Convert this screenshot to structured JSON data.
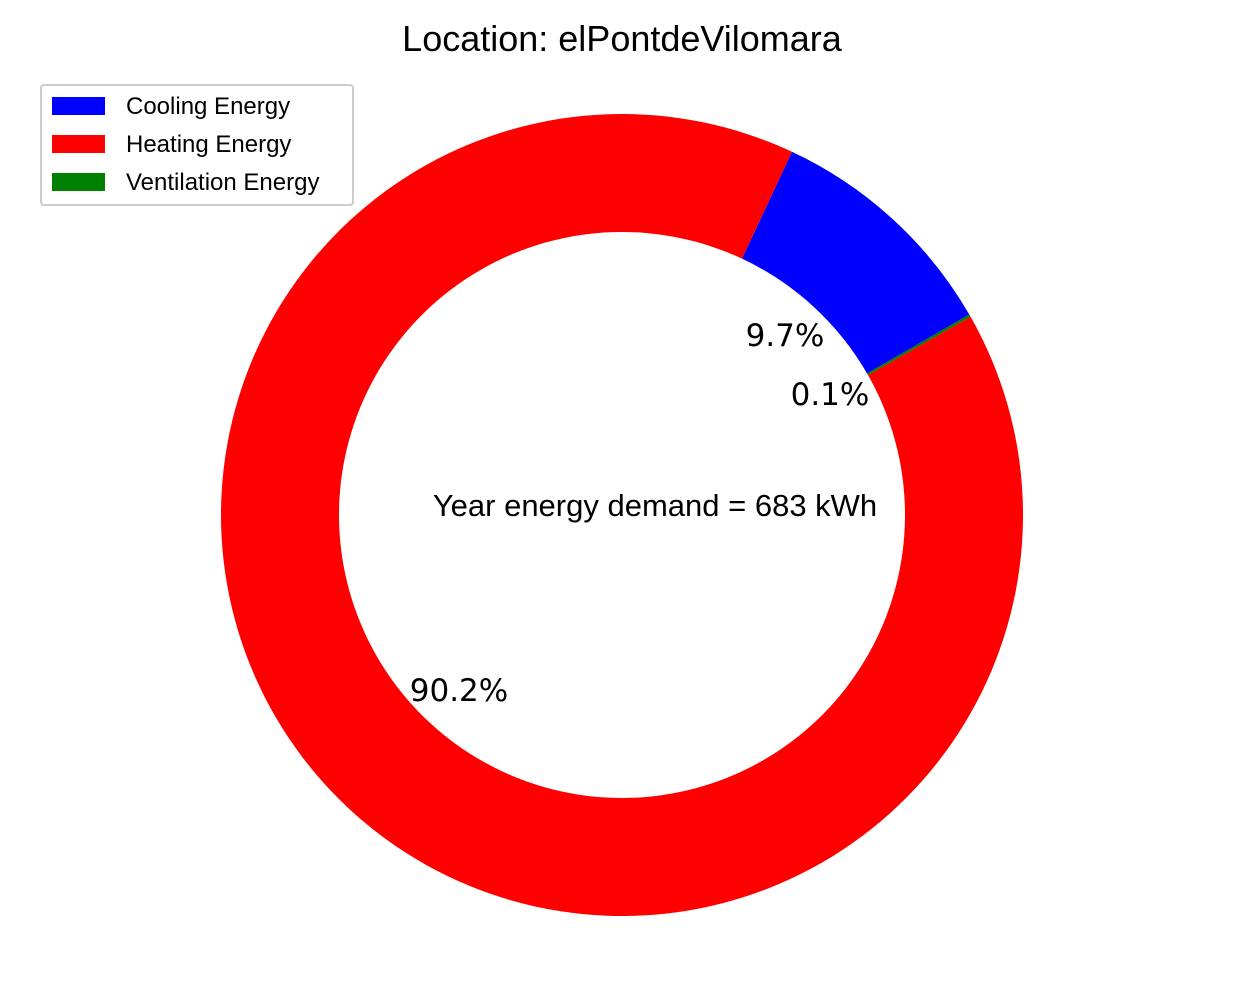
{
  "chart_data": {
    "type": "pie",
    "subtype": "donut",
    "title": "Location: elPontdeVilomara",
    "center_text": "Year energy demand = 683 kWh",
    "total_kwh": 683,
    "unit": "kWh",
    "start_angle_deg": 30,
    "direction": "counterclockwise",
    "legend_position": "upper-left",
    "slices": [
      {
        "name": "Cooling Energy",
        "percent": 9.7,
        "label": "9.7%",
        "color": "#0000ff"
      },
      {
        "name": "Heating Energy",
        "percent": 90.2,
        "label": "90.2%",
        "color": "#ff0000"
      },
      {
        "name": "Ventilation Energy",
        "percent": 0.1,
        "label": "0.1%",
        "color": "#008000"
      }
    ]
  }
}
